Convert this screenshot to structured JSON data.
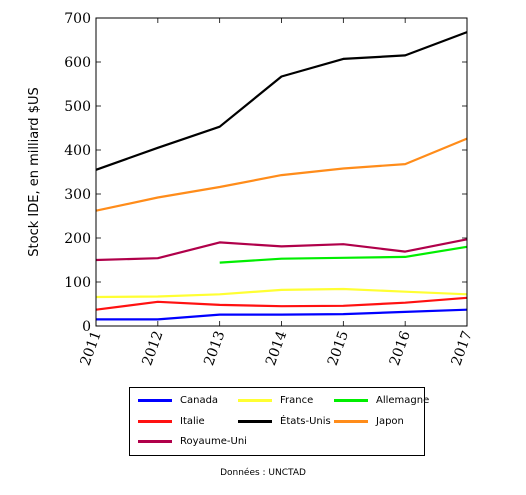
{
  "chart_data": {
    "type": "line",
    "ylabel": "Stock IDE, en milliard $US",
    "xlabel": "",
    "x": [
      2011,
      2012,
      2013,
      2014,
      2015,
      2016,
      2017
    ],
    "x_tick_labels": [
      "2011",
      "2012",
      "2013",
      "2014",
      "2015",
      "2016",
      "2017"
    ],
    "ylim": [
      0,
      700
    ],
    "y_ticks": [
      0,
      100,
      200,
      300,
      400,
      500,
      600,
      700
    ],
    "y_tick_labels": [
      "0",
      "100",
      "200",
      "300",
      "400",
      "500",
      "600",
      "700"
    ],
    "grid": false,
    "legend_position": "bottom",
    "series": [
      {
        "name": "Canada",
        "color": "#0000ff",
        "values": [
          15,
          15,
          26,
          26,
          27,
          32,
          37
        ]
      },
      {
        "name": "France",
        "color": "#ffff33",
        "values": [
          66,
          67,
          72,
          82,
          84,
          78,
          72
        ]
      },
      {
        "name": "Allemagne",
        "color": "#00ee00",
        "values": [
          null,
          null,
          144,
          153,
          155,
          157,
          180
        ]
      },
      {
        "name": "Italie",
        "color": "#ff1111",
        "values": [
          37,
          55,
          48,
          45,
          46,
          53,
          64
        ]
      },
      {
        "name": "États-Unis",
        "color": "#000000",
        "values": [
          355,
          405,
          453,
          567,
          607,
          615,
          668
        ]
      },
      {
        "name": "Japon",
        "color": "#ff8c1a",
        "values": [
          262,
          292,
          316,
          343,
          358,
          368,
          426
        ]
      },
      {
        "name": "Royaume-Uni",
        "color": "#b0004a",
        "values": [
          150,
          154,
          190,
          181,
          186,
          169,
          197
        ]
      }
    ]
  },
  "source_note": "Données : UNCTAD"
}
